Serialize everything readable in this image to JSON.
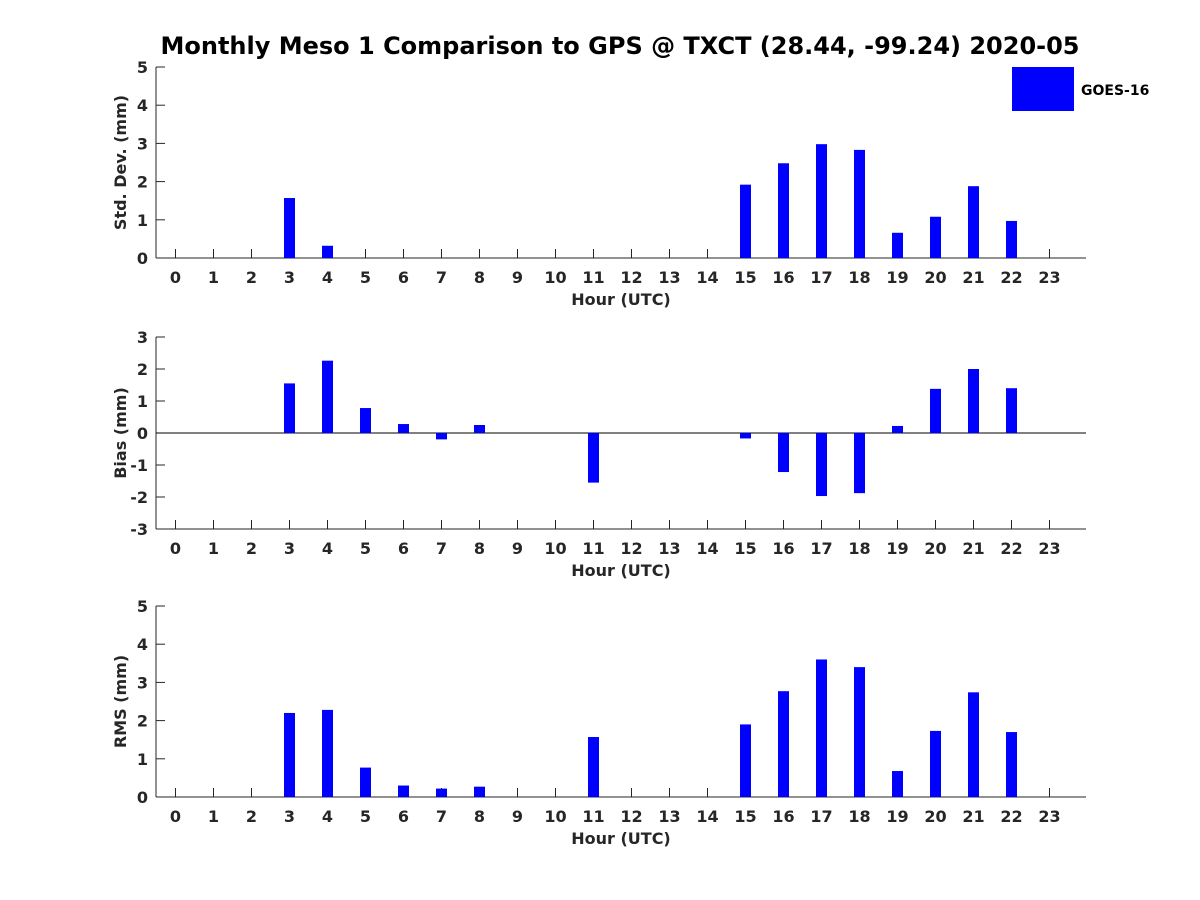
{
  "title": "Monthly Meso 1 Comparison to GPS @ TXCT (28.44, -99.24) 2020-05",
  "legend": {
    "label": "GOES-16",
    "color": "#0000ff",
    "placement": "top-right"
  },
  "chart_data": [
    {
      "type": "bar",
      "xlabel": "Hour (UTC)",
      "ylabel": "Std. Dev. (mm)",
      "ylim": [
        0,
        5
      ],
      "yticks": [
        0,
        1,
        2,
        3,
        4,
        5
      ],
      "categories": [
        0,
        1,
        2,
        3,
        4,
        5,
        6,
        7,
        8,
        9,
        10,
        11,
        12,
        13,
        14,
        15,
        16,
        17,
        18,
        19,
        20,
        21,
        22,
        23
      ],
      "series": [
        {
          "name": "GOES-16",
          "color": "#0000ff",
          "values": [
            null,
            null,
            null,
            1.57,
            0.32,
            null,
            null,
            null,
            null,
            null,
            null,
            null,
            null,
            null,
            null,
            1.92,
            2.48,
            2.98,
            2.83,
            0.66,
            1.08,
            1.88,
            0.97,
            null
          ]
        }
      ]
    },
    {
      "type": "bar",
      "xlabel": "Hour (UTC)",
      "ylabel": "Bias (mm)",
      "ylim": [
        -3,
        3
      ],
      "yticks": [
        -3,
        -2,
        -1,
        0,
        1,
        2,
        3
      ],
      "zero_line": true,
      "categories": [
        0,
        1,
        2,
        3,
        4,
        5,
        6,
        7,
        8,
        9,
        10,
        11,
        12,
        13,
        14,
        15,
        16,
        17,
        18,
        19,
        20,
        21,
        22,
        23
      ],
      "series": [
        {
          "name": "GOES-16",
          "color": "#0000ff",
          "values": [
            null,
            null,
            null,
            1.55,
            2.26,
            0.78,
            0.28,
            -0.2,
            0.25,
            null,
            null,
            -1.55,
            null,
            null,
            null,
            -0.17,
            -1.22,
            -1.97,
            -1.88,
            0.22,
            1.38,
            2.0,
            1.4,
            null
          ]
        }
      ]
    },
    {
      "type": "bar",
      "xlabel": "Hour (UTC)",
      "ylabel": "RMS (mm)",
      "ylim": [
        0,
        5
      ],
      "yticks": [
        0,
        1,
        2,
        3,
        4,
        5
      ],
      "categories": [
        0,
        1,
        2,
        3,
        4,
        5,
        6,
        7,
        8,
        9,
        10,
        11,
        12,
        13,
        14,
        15,
        16,
        17,
        18,
        19,
        20,
        21,
        22,
        23
      ],
      "series": [
        {
          "name": "GOES-16",
          "color": "#0000ff",
          "values": [
            null,
            null,
            null,
            2.2,
            2.28,
            0.77,
            0.3,
            0.22,
            0.27,
            null,
            null,
            1.57,
            null,
            null,
            null,
            1.9,
            2.77,
            3.6,
            3.4,
            0.68,
            1.73,
            2.74,
            1.7,
            null
          ]
        }
      ]
    }
  ]
}
